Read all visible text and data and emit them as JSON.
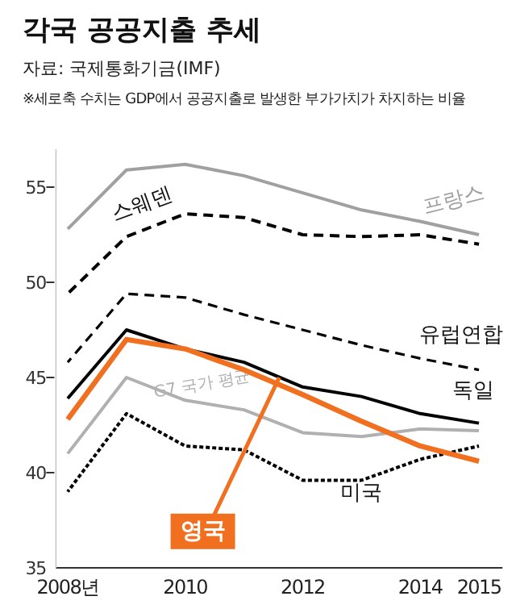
{
  "chart_data": {
    "type": "line",
    "title": "각국 공공지출 추세",
    "annotations": [
      "자료: 국제통화기금(IMF)",
      "※세로축 수치는 GDP에서 공공지출로 발생한 부가가치가 차지하는 비율"
    ],
    "x": [
      2008,
      2009,
      2010,
      2011,
      2012,
      2013,
      2014,
      2015
    ],
    "xlim": [
      2007.8,
      2015.4
    ],
    "xticks": [
      {
        "value": 2008,
        "label": "2008년"
      },
      2010,
      2012,
      2014,
      2015
    ],
    "ylim": [
      35,
      57
    ],
    "yticks": [
      35,
      40,
      45,
      50,
      55
    ],
    "grid": false,
    "legend": false,
    "marker": "none",
    "series": [
      {
        "name": "프랑스",
        "color": "#a0a0a0",
        "line_style": "solid",
        "values": [
          52.8,
          55.9,
          56.2,
          55.6,
          54.7,
          53.8,
          53.2,
          52.5
        ]
      },
      {
        "name": "스웨덴",
        "color": "#000000",
        "line_style": "dashed",
        "values": [
          49.4,
          52.4,
          53.6,
          53.4,
          52.5,
          52.4,
          52.5,
          52.0
        ]
      },
      {
        "name": "유럽연합",
        "color": "#000000",
        "line_style": "dashed",
        "values": [
          45.8,
          49.4,
          49.2,
          48.3,
          47.5,
          46.7,
          46.0,
          45.4
        ]
      },
      {
        "name": "독일",
        "color": "#000000",
        "line_style": "solid",
        "values": [
          43.9,
          47.5,
          46.5,
          45.8,
          44.5,
          44.0,
          43.1,
          42.6
        ]
      },
      {
        "name": "G7 국가 평균",
        "color": "#b0b0b0",
        "line_style": "solid",
        "values": [
          41.0,
          45.0,
          43.8,
          43.3,
          42.1,
          41.9,
          42.3,
          42.2
        ]
      },
      {
        "name": "미국",
        "color": "#000000",
        "line_style": "dotted",
        "values": [
          39.0,
          43.1,
          41.4,
          41.2,
          39.6,
          39.6,
          40.7,
          41.4
        ]
      },
      {
        "name": "영국",
        "color": "#f07020",
        "line_style": "solid",
        "values": [
          42.8,
          47.0,
          46.5,
          45.4,
          44.1,
          42.7,
          41.4,
          40.6
        ]
      }
    ]
  }
}
